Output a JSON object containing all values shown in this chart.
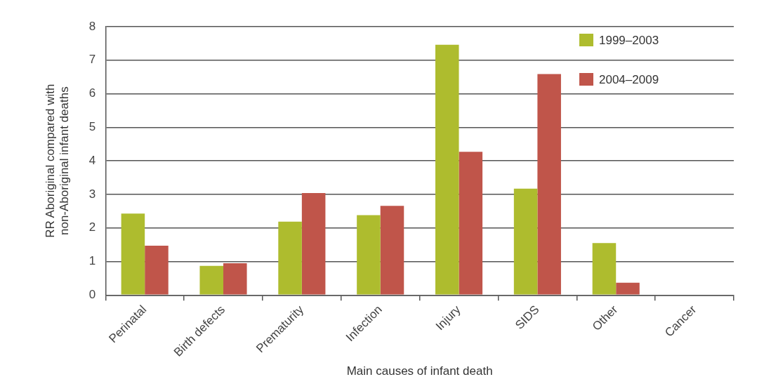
{
  "chart_data": {
    "type": "bar",
    "xlabel": "Main causes of infant death",
    "ylabel": "RR Aboriginal compared with\nnon-Aboriginal infant deaths",
    "categories": [
      "Perinatal",
      "Birth defects",
      "Prematurity",
      "Infection",
      "Injury",
      "SIDS",
      "Other",
      "Cancer"
    ],
    "series": [
      {
        "name": "1999–2003",
        "color": "#aebc2e",
        "values": [
          2.43,
          0.87,
          2.19,
          2.38,
          7.46,
          3.17,
          1.55,
          null
        ]
      },
      {
        "name": "2004–2009",
        "color": "#c0554a",
        "values": [
          1.47,
          0.95,
          3.04,
          2.66,
          4.27,
          6.59,
          0.37,
          null
        ]
      }
    ],
    "ylim": [
      0,
      8
    ],
    "yticks": [
      0,
      1,
      2,
      3,
      4,
      5,
      6,
      7,
      8
    ],
    "grid": "y",
    "legend": "top right"
  }
}
